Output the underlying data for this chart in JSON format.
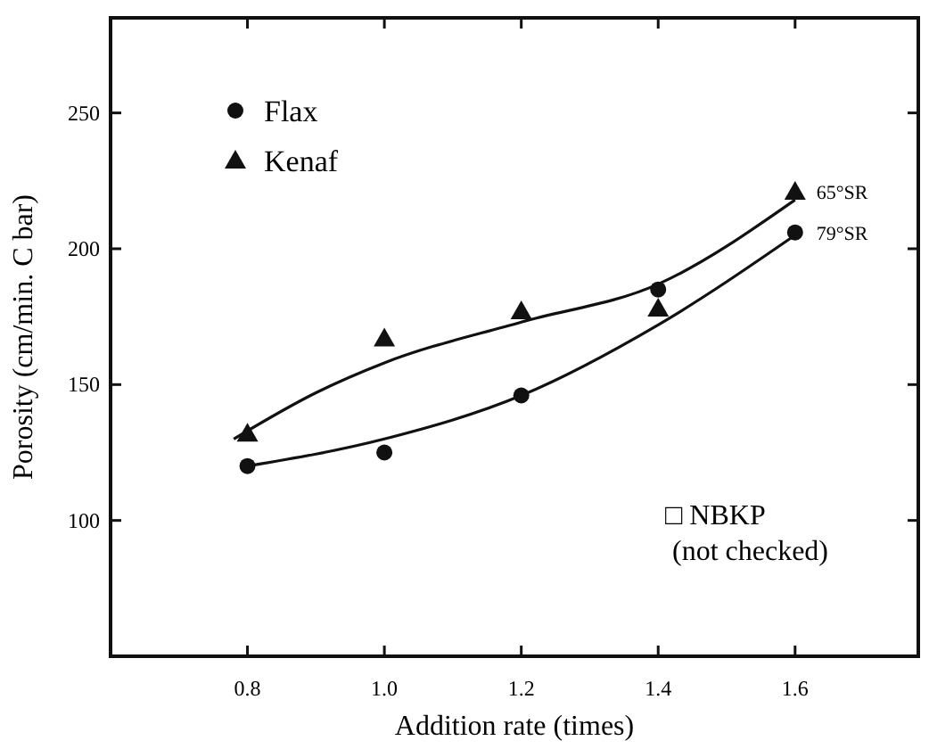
{
  "chart_data": {
    "type": "scatter",
    "xlabel": "Addition rate (times)",
    "ylabel": "Porosity (cm/min. C bar)",
    "xlim": [
      0.6,
      1.78
    ],
    "ylim": [
      50,
      285
    ],
    "xticks": [
      {
        "value": 0.8,
        "label": "0.8"
      },
      {
        "value": 1.0,
        "label": "1.0"
      },
      {
        "value": 1.2,
        "label": "1.2"
      },
      {
        "value": 1.4,
        "label": "1.4"
      },
      {
        "value": 1.6,
        "label": "1.6"
      }
    ],
    "yticks": [
      100,
      150,
      200,
      250
    ],
    "grid": false,
    "legend": "top left",
    "series": [
      {
        "name": "Flax",
        "marker": "circle",
        "color": "#111111",
        "x": [
          0.8,
          1.0,
          1.2,
          1.4,
          1.6
        ],
        "values": [
          120,
          125,
          146,
          185,
          206
        ]
      },
      {
        "name": "Kenaf",
        "marker": "triangle",
        "color": "#111111",
        "x": [
          0.8,
          1.0,
          1.2,
          1.4,
          1.6
        ],
        "values": [
          132,
          167,
          177,
          178,
          221
        ]
      },
      {
        "type": "line",
        "color": "#111111",
        "x": [
          0.8,
          1.0,
          1.2,
          1.4,
          1.6
        ],
        "values": [
          120,
          130,
          146,
          172,
          205
        ]
      },
      {
        "type": "line",
        "color": "#111111",
        "x": [
          0.78,
          0.9,
          1.0,
          1.2,
          1.4,
          1.6
        ],
        "values": [
          130,
          147,
          158,
          173,
          187,
          218
        ]
      }
    ],
    "annotations": [
      {
        "text": "65°SR",
        "x": 1.6,
        "y": 221
      },
      {
        "text": "79°SR",
        "x": 1.6,
        "y": 206
      },
      "□ NBKP (not checked)"
    ]
  }
}
